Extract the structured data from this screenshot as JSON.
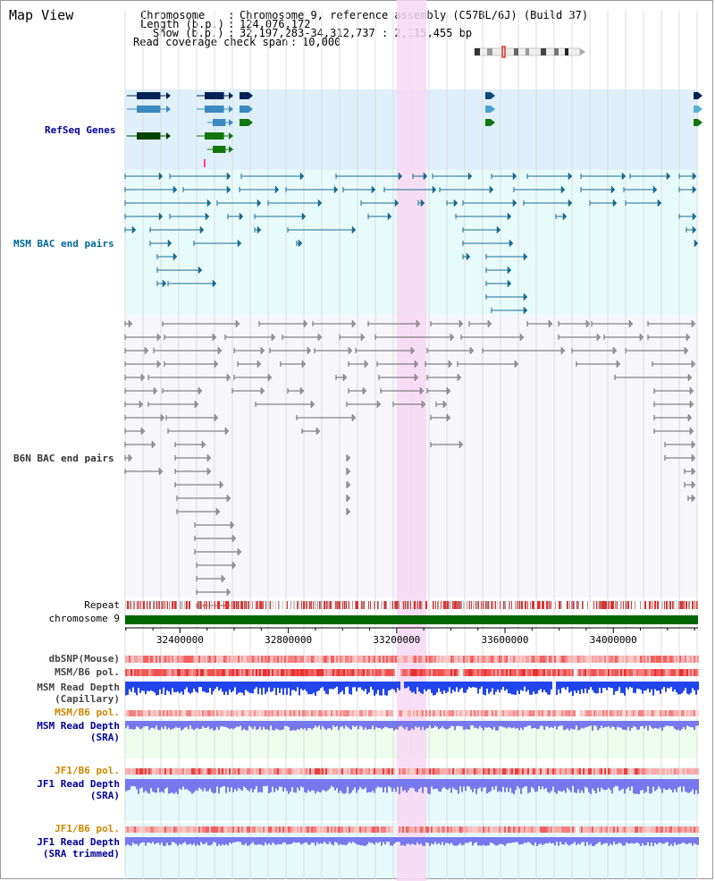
{
  "title": "Map View",
  "info": {
    "chromosome_key": "Chromosome",
    "chromosome_val": "Chromosome 9, reference assembly (C57BL/6J) (Build 37)",
    "length_key": "Length (b.p.)",
    "length_val": "124,076,172",
    "show_key": "Show (b.p.)",
    "show_val": "32,197,283-34,312,737 : 2,115,455 bp",
    "span_key": "Read coverage check span",
    "span_val": "10,000"
  },
  "sections": {
    "refseq": "RefSeq Genes",
    "msm_bac": "MSM BAC end pairs",
    "b6n_bac": "B6N BAC end pairs"
  },
  "tracks": {
    "repeat": "Repeat",
    "chromosome": "chromosome 9",
    "dbsnp": "dbSNP(Mouse)",
    "msm_b6_pol": "MSM/B6 pol.",
    "msm_depth_cap_1": "MSM Read Depth",
    "msm_depth_cap_2": "(Capillary)",
    "msm_b6_pol_2": "MSM/B6 pol.",
    "msm_depth_sra_1": "MSM Read Depth",
    "msm_depth_sra_2": "(SRA)",
    "jf1_b6_pol": "JF1/B6 pol.",
    "jf1_depth_sra_1": "JF1 Read Depth",
    "jf1_depth_sra_2": "(SRA)",
    "jf1_b6_pol_2": "JF1/B6 pol.",
    "jf1_depth_trim_1": "JF1 Read Depth",
    "jf1_depth_trim_2": "(SRA trimmed)"
  },
  "axis": {
    "ticks": [
      "32400000",
      "32800000",
      "33200000",
      "33600000",
      "34000000"
    ],
    "range_start": 32197283,
    "range_end": 34312737,
    "highlight_start": 33200000,
    "highlight_end": 33310000
  },
  "colors": {
    "refseq_bg": "#dff0fa",
    "msm_bg": "#e8fbfb",
    "b6n_bg": "#f7f7fb",
    "highlight": "#f7d8f2",
    "refseq_label": "#000099",
    "msm_label": "#006699",
    "b6n_label": "#333333",
    "orange_label": "#cc8800",
    "blue_label": "#000099",
    "chromosome_bar": "#006600",
    "depth_blue": "#2244ee",
    "depth_light": "#7777ee"
  }
}
